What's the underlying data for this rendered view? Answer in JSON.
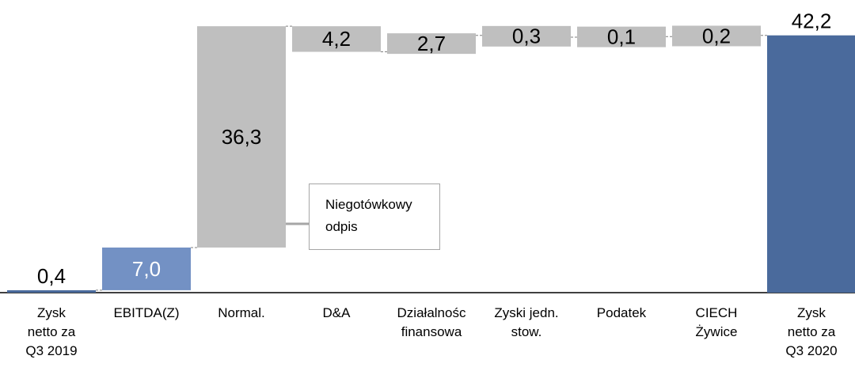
{
  "chart_data": {
    "type": "waterfall",
    "categories": [
      "Zysk\nnetto za\nQ3 2019",
      "EBITDA(Z)",
      "Normal.",
      "D&A",
      "Działalnośc\nfinansowa",
      "Zyski jedn.\nstow.",
      "Podatek",
      "CIECH\nŻywice",
      "Zysk\nnetto za\nQ3 2020"
    ],
    "values": [
      0.4,
      7.0,
      36.3,
      4.2,
      2.7,
      0.3,
      0.1,
      0.2,
      42.2
    ],
    "value_labels": [
      "0,4",
      "7,0",
      "36,3",
      "4,2",
      "2,7",
      "0,3",
      "0,1",
      "0,2",
      "42,2"
    ],
    "colors": [
      "#4a6a9c",
      "#7391c4",
      "#bfbfbf",
      "#bfbfbf",
      "#bfbfbf",
      "#bfbfbf",
      "#bfbfbf",
      "#bfbfbf",
      "#4a6a9c"
    ],
    "totals": [
      0,
      8
    ],
    "decreases": [
      3,
      5
    ],
    "ylim": [
      0,
      48
    ],
    "annotation": "Niegotówkowy\nodpis"
  }
}
